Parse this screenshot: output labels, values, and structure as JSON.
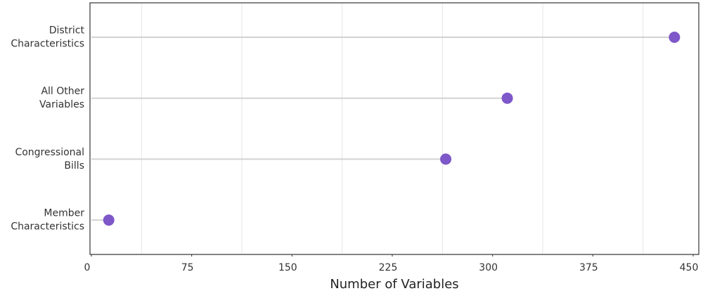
{
  "chart_data": {
    "type": "lollipop",
    "x_label": "Number of Variables",
    "categories": [
      [
        "District",
        "Characteristics"
      ],
      [
        "All Other",
        "Variables"
      ],
      [
        "Congressional",
        "Bills"
      ],
      [
        "Member",
        "Characteristics"
      ]
    ],
    "values": [
      436,
      311,
      265,
      13
    ],
    "color": "#7e57c8",
    "xlim": [
      0,
      450
    ],
    "xticks": [
      0,
      75,
      150,
      225,
      300,
      375,
      450
    ],
    "x_minor_grid": [
      37.5,
      112.5,
      187.5,
      262.5,
      337.5,
      412.5
    ]
  }
}
